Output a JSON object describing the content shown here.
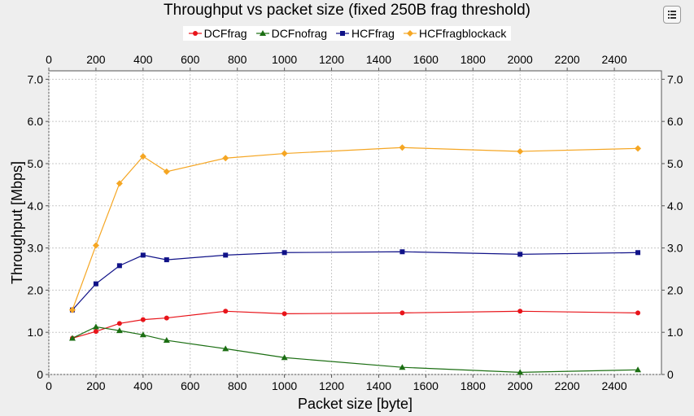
{
  "chart_data": {
    "type": "line",
    "title": "Throughput vs packet size (fixed 250B frag threshold)",
    "xlabel": "Packet size [byte]",
    "ylabel": "Throughput [Mbps]",
    "xlim": [
      0,
      2600
    ],
    "ylim": [
      0,
      7.2
    ],
    "x_ticks": [
      0,
      200,
      400,
      600,
      800,
      1000,
      1200,
      1400,
      1600,
      1800,
      2000,
      2200,
      2400
    ],
    "y_ticks": [
      0,
      1.0,
      2.0,
      3.0,
      4.0,
      5.0,
      6.0,
      7.0
    ],
    "y_tick_labels": [
      "0",
      "1.0",
      "2.0",
      "3.0",
      "4.0",
      "5.0",
      "6.0",
      "7.0"
    ],
    "grid": true,
    "legend_position": "top-center",
    "series": [
      {
        "name": "DCFfrag",
        "color": "#e8141a",
        "marker": "circle",
        "x": [
          100,
          200,
          300,
          400,
          500,
          750,
          1000,
          1500,
          2000,
          2500
        ],
        "y": [
          0.86,
          1.02,
          1.21,
          1.3,
          1.34,
          1.5,
          1.44,
          1.46,
          1.5,
          1.46
        ]
      },
      {
        "name": "DCFnofrag",
        "color": "#1b6e12",
        "marker": "triangle",
        "x": [
          100,
          200,
          300,
          400,
          500,
          750,
          1000,
          1500,
          2000,
          2500
        ],
        "y": [
          0.86,
          1.13,
          1.04,
          0.94,
          0.81,
          0.61,
          0.4,
          0.17,
          0.05,
          0.11
        ]
      },
      {
        "name": "HCFfrag",
        "color": "#101288",
        "marker": "square",
        "x": [
          100,
          200,
          300,
          400,
          500,
          750,
          1000,
          1500,
          2000,
          2500
        ],
        "y": [
          1.53,
          2.15,
          2.58,
          2.83,
          2.72,
          2.83,
          2.89,
          2.91,
          2.85,
          2.89
        ]
      },
      {
        "name": "HCFfragblockack",
        "color": "#f5a623",
        "marker": "diamond",
        "x": [
          100,
          200,
          300,
          400,
          500,
          750,
          1000,
          1500,
          2000,
          2500
        ],
        "y": [
          1.53,
          3.06,
          4.53,
          5.17,
          4.81,
          5.13,
          5.24,
          5.38,
          5.29,
          5.36
        ]
      }
    ]
  }
}
